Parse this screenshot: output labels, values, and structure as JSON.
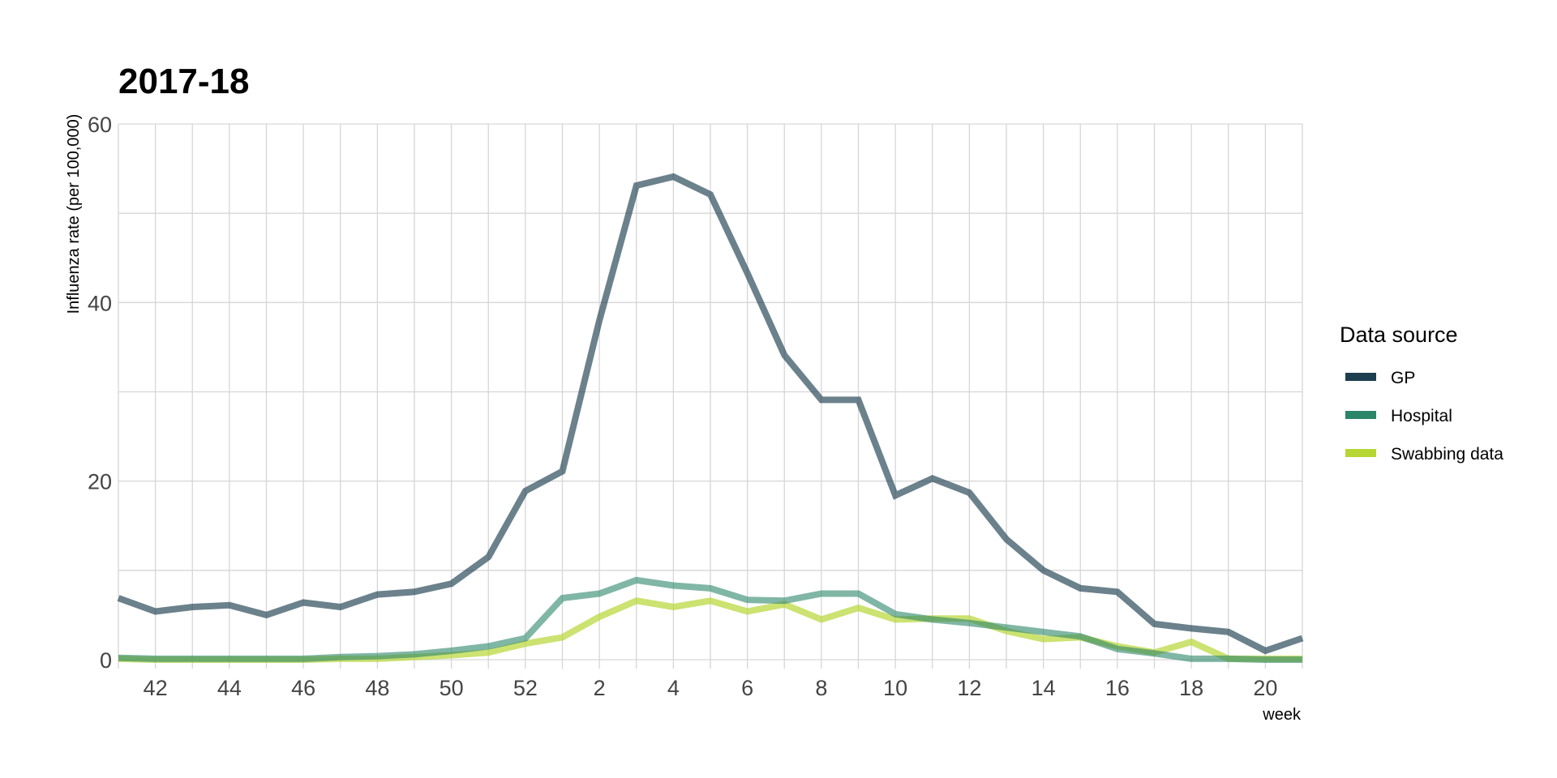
{
  "chart_data": {
    "type": "line",
    "title": "2017-18",
    "xlabel": "week",
    "ylabel": "Influenza rate (per 100,000)",
    "ylim": [
      -1,
      60
    ],
    "yticks": [
      0,
      20,
      40,
      60
    ],
    "x": [
      "41",
      "42",
      "43",
      "44",
      "45",
      "46",
      "47",
      "48",
      "49",
      "50",
      "51",
      "52",
      "1",
      "2",
      "3",
      "4",
      "5",
      "6",
      "7",
      "8",
      "9",
      "10",
      "11",
      "12",
      "13",
      "14",
      "15",
      "16",
      "17",
      "18",
      "19",
      "20",
      "21"
    ],
    "xtick_labels": [
      "42",
      "44",
      "46",
      "48",
      "50",
      "52",
      "2",
      "4",
      "6",
      "8",
      "10",
      "12",
      "14",
      "16",
      "18",
      "20"
    ],
    "grid": true,
    "legend": {
      "title": "Data source",
      "position": "right"
    },
    "series": [
      {
        "name": "Swabbing data",
        "color": "#b6d634",
        "opacity": 0.7,
        "values": [
          0.1,
          0.0,
          0.0,
          0.0,
          0.0,
          0.0,
          0.1,
          0.1,
          0.3,
          0.5,
          0.8,
          1.8,
          2.5,
          4.8,
          6.6,
          5.9,
          6.6,
          5.4,
          6.2,
          4.5,
          5.8,
          4.5,
          4.6,
          4.6,
          3.2,
          2.3,
          2.5,
          1.5,
          0.8,
          2.0,
          0.1,
          0.1,
          0.1
        ]
      },
      {
        "name": "Hospital",
        "color": "#2b8569",
        "opacity": 0.6,
        "values": [
          0.2,
          0.1,
          0.1,
          0.1,
          0.1,
          0.1,
          0.3,
          0.4,
          0.6,
          1.0,
          1.5,
          2.4,
          6.9,
          7.4,
          8.9,
          8.3,
          8.0,
          6.7,
          6.6,
          7.4,
          7.4,
          5.1,
          4.5,
          4.1,
          3.6,
          3.1,
          2.6,
          1.2,
          0.7,
          0.1,
          0.1,
          0.0,
          0.0
        ]
      },
      {
        "name": "GP",
        "color": "#1c3e4e",
        "opacity": 0.65,
        "values": [
          6.9,
          5.4,
          5.9,
          6.1,
          5.0,
          6.4,
          5.9,
          7.3,
          7.6,
          8.5,
          11.5,
          18.9,
          21.1,
          38.0,
          53.1,
          54.1,
          52.1,
          43.3,
          34.1,
          29.1,
          29.1,
          18.4,
          20.3,
          18.7,
          13.5,
          10.0,
          8.0,
          7.6,
          4.0,
          3.5,
          3.1,
          1.0,
          2.4
        ]
      }
    ]
  }
}
